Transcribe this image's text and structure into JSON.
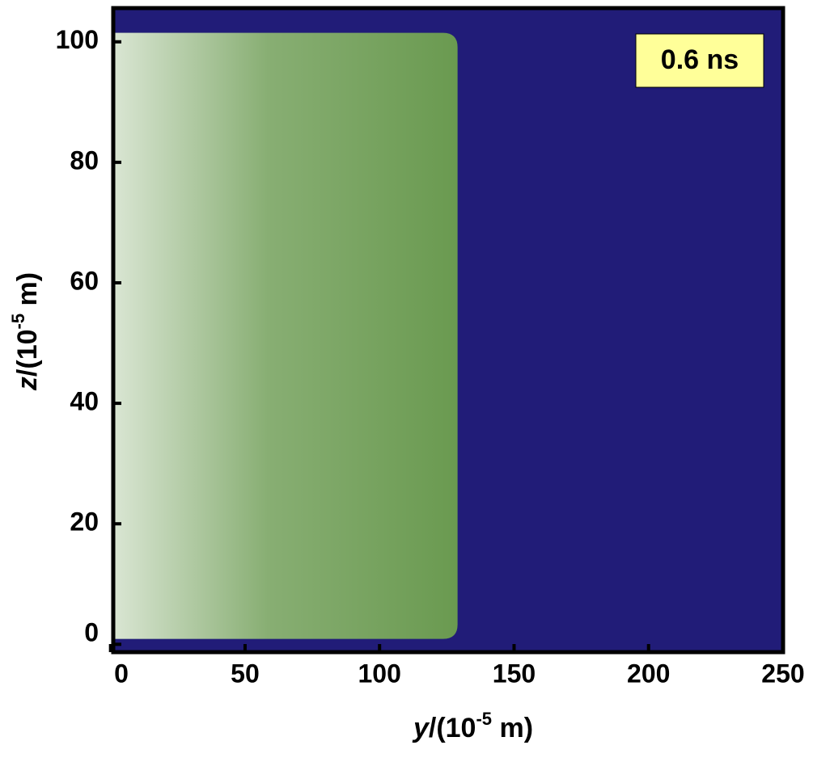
{
  "chart_data": {
    "type": "region",
    "annotation": "0.6 ns",
    "xlabel": {
      "var": "y",
      "text": "/(10",
      "sup": "-5",
      "unit": " m)"
    },
    "ylabel": {
      "var": "z",
      "text": "/(10",
      "sup": "-5",
      "unit": " m)"
    },
    "xlim": [
      1,
      250
    ],
    "ylim": [
      -1.3,
      105.6
    ],
    "xticks": [
      0,
      50,
      100,
      150,
      200,
      250
    ],
    "yticks": [
      0,
      20,
      40,
      60,
      80,
      100
    ],
    "background_color": "#211c78",
    "region": {
      "color": "#6a9a50",
      "x": [
        1,
        129
      ],
      "y": [
        0.9,
        101.5
      ]
    }
  }
}
